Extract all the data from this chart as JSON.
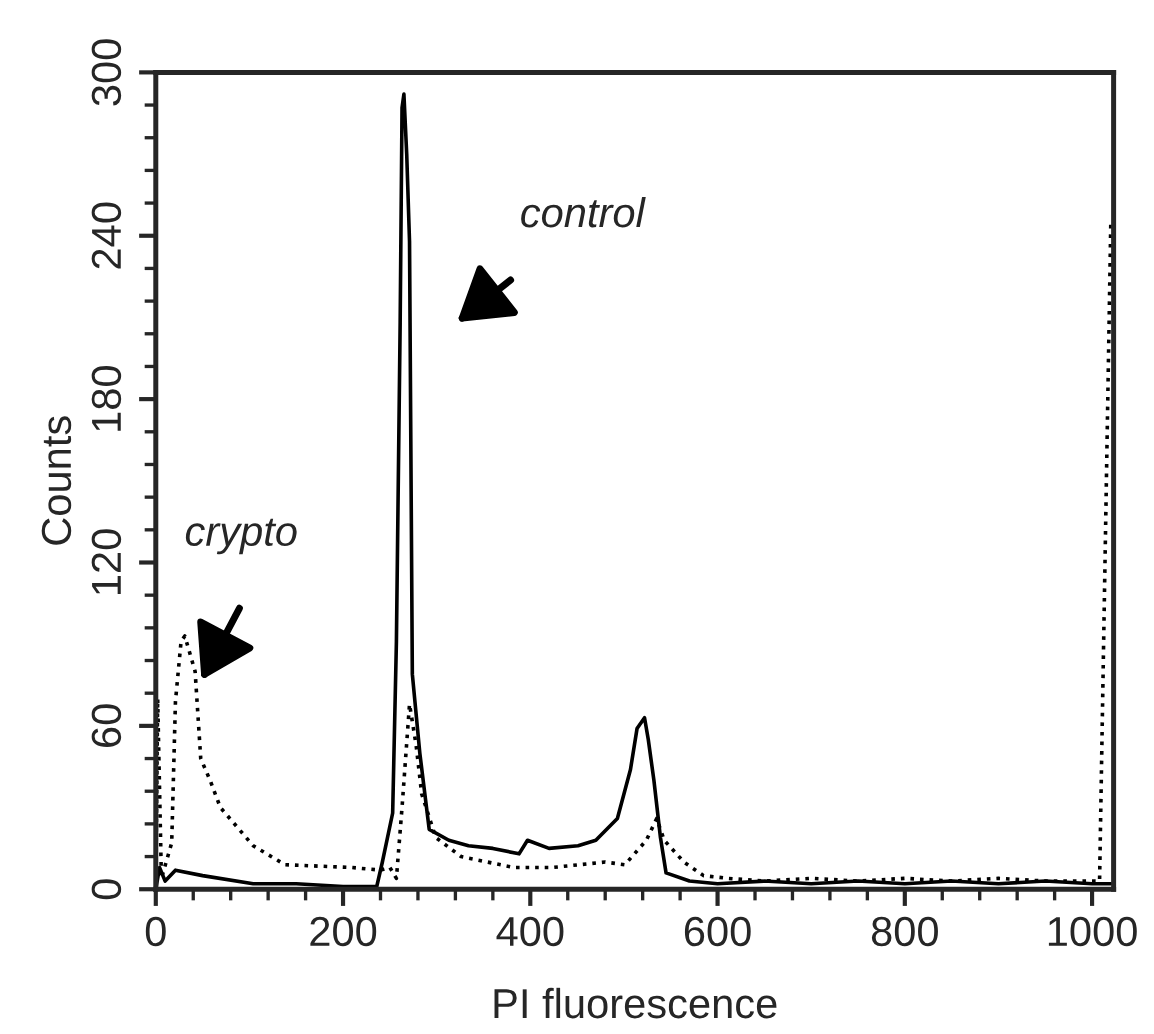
{
  "chart_data": {
    "type": "line",
    "xlabel": "PI fluorescence",
    "ylabel": "Counts",
    "xlim": [
      0,
      1023
    ],
    "ylim": [
      0,
      300
    ],
    "xticks": [
      0,
      200,
      400,
      600,
      800,
      1000
    ],
    "yticks": [
      0,
      60,
      120,
      180,
      240,
      300
    ],
    "series": [
      {
        "color": "#000000",
        "line_style": "solid",
        "x": [
          0,
          4,
          10,
          21,
          50,
          104,
          150,
          200,
          236,
          242,
          253,
          257,
          261,
          263,
          265,
          268,
          271,
          274,
          282,
          292,
          313,
          334,
          360,
          388,
          397,
          420,
          451,
          470,
          493,
          507,
          514,
          522,
          526,
          532,
          539,
          545,
          570,
          600,
          650,
          700,
          750,
          800,
          850,
          900,
          950,
          1000,
          1020
        ],
        "values": [
          0,
          8,
          3,
          7,
          5,
          2,
          2,
          1,
          1,
          10,
          28,
          91,
          208,
          287,
          292,
          270,
          238,
          79,
          50,
          22,
          18,
          16,
          15,
          13,
          18,
          15,
          16,
          18,
          26,
          44,
          59,
          63,
          55,
          40,
          19,
          6,
          3,
          2,
          3,
          2,
          3,
          2,
          3,
          2,
          3,
          2,
          2
        ]
      },
      {
        "color": "#000000",
        "line_style": "dotted",
        "x": [
          0,
          2,
          6,
          17,
          21,
          27,
          31,
          42,
          48,
          58,
          69,
          104,
          138,
          209,
          240,
          250,
          257,
          263,
          271,
          278,
          284,
          299,
          326,
          382,
          424,
          480,
          501,
          524,
          535,
          543,
          564,
          585,
          611,
          650,
          700,
          750,
          800,
          850,
          900,
          950,
          1008,
          1020
        ],
        "values": [
          0,
          70,
          4,
          17,
          69,
          91,
          93,
          80,
          48,
          40,
          30,
          16,
          9,
          8,
          7,
          8,
          4,
          30,
          68,
          53,
          35,
          19,
          12,
          8,
          8,
          10,
          9,
          18,
          26,
          18,
          10,
          5,
          4,
          3,
          4,
          3,
          4,
          3,
          4,
          3,
          3,
          245
        ]
      }
    ],
    "annotations": [
      "control",
      "crypto"
    ]
  }
}
